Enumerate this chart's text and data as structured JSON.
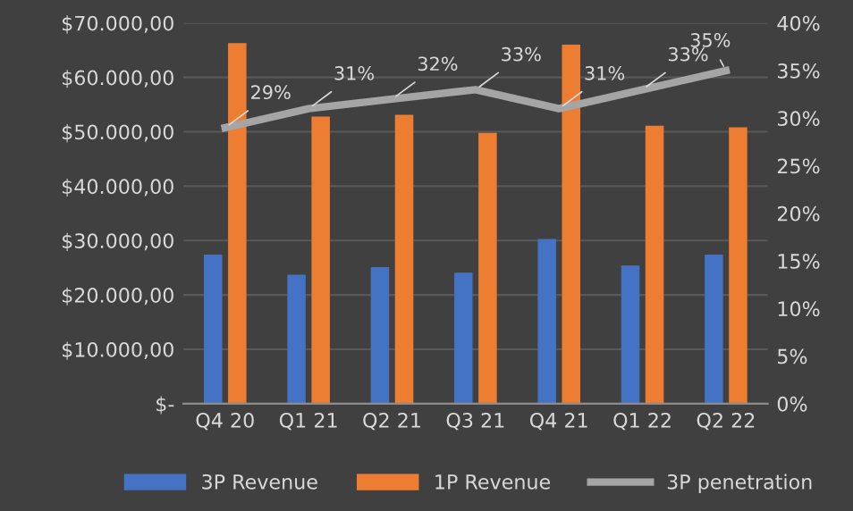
{
  "chart_data": {
    "type": "bar",
    "categories": [
      "Q4 20",
      "Q1 21",
      "Q2 21",
      "Q3 21",
      "Q4 21",
      "Q1 22",
      "Q2 22"
    ],
    "series": [
      {
        "name": "3P Revenue",
        "color": "#4472c4",
        "values": [
          27400,
          23700,
          25100,
          24100,
          30300,
          25400,
          27400
        ]
      },
      {
        "name": "1P Revenue",
        "color": "#ed7d31",
        "values": [
          66300,
          52800,
          53100,
          49800,
          66000,
          51100,
          50800
        ]
      },
      {
        "name": "3P penetration",
        "type": "line",
        "axis": "y2",
        "color": "#a5a5a5",
        "values": [
          29,
          31,
          32,
          33,
          31,
          33,
          35
        ],
        "value_labels": [
          "29%",
          "31%",
          "32%",
          "33%",
          "31%",
          "33%",
          "35%"
        ]
      }
    ],
    "ylim": [
      0,
      70000
    ],
    "yticks": [
      {
        "value": 0,
        "label": "$-"
      },
      {
        "value": 10000,
        "label": "$10.000,00"
      },
      {
        "value": 20000,
        "label": "$20.000,00"
      },
      {
        "value": 30000,
        "label": "$30.000,00"
      },
      {
        "value": 40000,
        "label": "$40.000,00"
      },
      {
        "value": 50000,
        "label": "$50.000,00"
      },
      {
        "value": 60000,
        "label": "$60.000,00"
      },
      {
        "value": 70000,
        "label": "$70.000,00"
      }
    ],
    "y2lim": [
      0,
      40
    ],
    "y2ticks": [
      {
        "value": 0,
        "label": "0%"
      },
      {
        "value": 5,
        "label": "5%"
      },
      {
        "value": 10,
        "label": "10%"
      },
      {
        "value": 15,
        "label": "15%"
      },
      {
        "value": 20,
        "label": "20%"
      },
      {
        "value": 25,
        "label": "25%"
      },
      {
        "value": 30,
        "label": "30%"
      },
      {
        "value": 35,
        "label": "35%"
      },
      {
        "value": 40,
        "label": "40%"
      }
    ],
    "grid": "y",
    "legend": "bottom"
  }
}
